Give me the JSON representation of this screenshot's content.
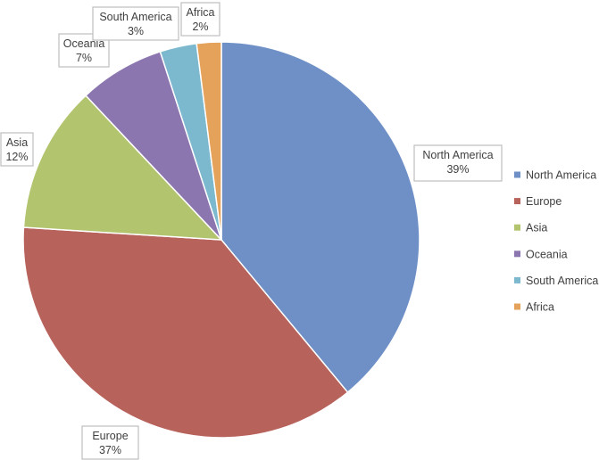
{
  "chart_data": {
    "type": "pie",
    "title": "",
    "legend_position": "right",
    "slices": [
      {
        "name": "North America",
        "value": 39,
        "label": "39%",
        "color": "#6F90C6"
      },
      {
        "name": "Europe",
        "value": 37,
        "label": "37%",
        "color": "#B8625C"
      },
      {
        "name": "Asia",
        "value": 12,
        "label": "12%",
        "color": "#B2C46E"
      },
      {
        "name": "Oceania",
        "value": 7,
        "label": "7%",
        "color": "#8C76AF"
      },
      {
        "name": "South America",
        "value": 3,
        "label": "3%",
        "color": "#7CB8CE"
      },
      {
        "name": "Africa",
        "value": 2,
        "label": "2%",
        "color": "#E5A25A"
      }
    ]
  }
}
